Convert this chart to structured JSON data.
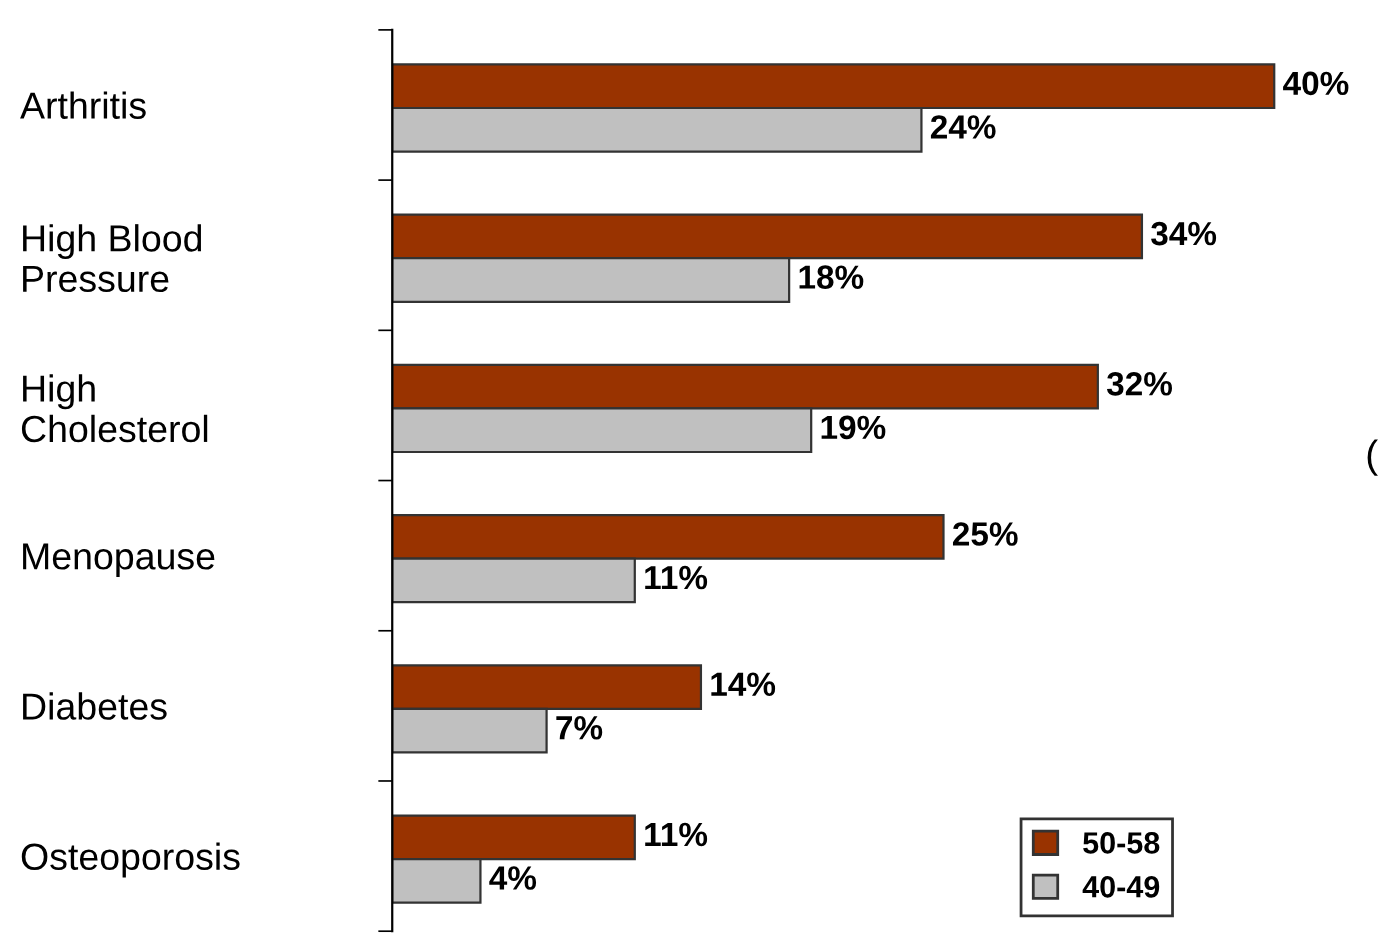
{
  "chart_data": {
    "type": "bar",
    "orientation": "horizontal",
    "categories": [
      "Arthritis",
      "High Blood\nPressure",
      "High\nCholesterol",
      "Menopause",
      "Diabetes",
      "Osteoporosis"
    ],
    "series": [
      {
        "name": "50-58",
        "color": "#993300",
        "values": [
          40,
          34,
          32,
          25,
          14,
          11
        ],
        "value_labels": [
          "40%",
          "34%",
          "32%",
          "25%",
          "14%",
          "11%"
        ]
      },
      {
        "name": "40-49",
        "color": "#c0c0c0",
        "values": [
          24,
          18,
          19,
          11,
          7,
          4
        ],
        "value_labels": [
          "24%",
          "18%",
          "19%",
          "11%",
          "7%",
          "4%"
        ]
      }
    ],
    "tick_labels": "y",
    "grid": false,
    "legend": "bottom right",
    "annotations": [
      "("
    ]
  }
}
